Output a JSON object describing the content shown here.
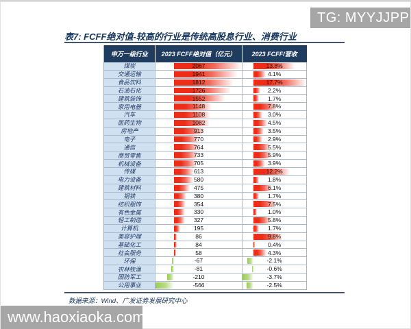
{
  "page": {
    "watermark_top_right": "TG: MYYJJPP",
    "watermark_bottom_left": "www.haoxiaoka.com"
  },
  "report": {
    "title": "表7:  FCFF绝对值-较高的行业是传统高股息行业、消费行业",
    "source_note": "数据来源：Wind、广发证券发展研究中心"
  },
  "table": {
    "headers": [
      "申万一级行业",
      "2023 FCFF绝对值（亿元）",
      "2023 FCFF/营收"
    ],
    "rows": [
      {
        "industry": "煤炭",
        "fcff": 2067,
        "ratio_pct": 13.8
      },
      {
        "industry": "交通运输",
        "fcff": 1941,
        "ratio_pct": 4.1
      },
      {
        "industry": "食品饮料",
        "fcff": 1812,
        "ratio_pct": 17.7
      },
      {
        "industry": "石油石化",
        "fcff": 1726,
        "ratio_pct": 2.2
      },
      {
        "industry": "建筑装饰",
        "fcff": 1552,
        "ratio_pct": 1.7
      },
      {
        "industry": "家用电器",
        "fcff": 1148,
        "ratio_pct": 7.8
      },
      {
        "industry": "汽车",
        "fcff": 1108,
        "ratio_pct": 3.0
      },
      {
        "industry": "医药生物",
        "fcff": 1082,
        "ratio_pct": 4.5
      },
      {
        "industry": "房地产",
        "fcff": 913,
        "ratio_pct": 3.5
      },
      {
        "industry": "电子",
        "fcff": 770,
        "ratio_pct": 2.9
      },
      {
        "industry": "通信",
        "fcff": 764,
        "ratio_pct": 5.5
      },
      {
        "industry": "商贸零售",
        "fcff": 733,
        "ratio_pct": 5.9
      },
      {
        "industry": "机械设备",
        "fcff": 705,
        "ratio_pct": 3.9
      },
      {
        "industry": "传媒",
        "fcff": 613,
        "ratio_pct": 12.2
      },
      {
        "industry": "电力设备",
        "fcff": 580,
        "ratio_pct": 1.8
      },
      {
        "industry": "建筑材料",
        "fcff": 475,
        "ratio_pct": 6.1
      },
      {
        "industry": "钢铁",
        "fcff": 380,
        "ratio_pct": 1.7
      },
      {
        "industry": "纺织服饰",
        "fcff": 354,
        "ratio_pct": 7.5
      },
      {
        "industry": "有色金属",
        "fcff": 330,
        "ratio_pct": 1.0
      },
      {
        "industry": "轻工制造",
        "fcff": 327,
        "ratio_pct": 5.8
      },
      {
        "industry": "计算机",
        "fcff": 195,
        "ratio_pct": 1.7
      },
      {
        "industry": "美容护理",
        "fcff": 86,
        "ratio_pct": 9.8
      },
      {
        "industry": "基础化工",
        "fcff": 84,
        "ratio_pct": 0.4
      },
      {
        "industry": "社会服务",
        "fcff": 58,
        "ratio_pct": 4.3
      },
      {
        "industry": "环保",
        "fcff": -67,
        "ratio_pct": -2.1
      },
      {
        "industry": "农林牧渔",
        "fcff": -81,
        "ratio_pct": -0.6
      },
      {
        "industry": "国防军工",
        "fcff": -210,
        "ratio_pct": -3.7
      },
      {
        "industry": "公用事业",
        "fcff": -566,
        "ratio_pct": -2.5
      }
    ]
  },
  "colors": {
    "header_bg": "#1f3c5f",
    "industry_cell_bg": "#cfe0f1",
    "navy_text": "#15365c",
    "positive_bar": "#ed2d17",
    "negative_bar": "#8dc63f",
    "watermark_bg": "#a6a6a6"
  },
  "chart_data": {
    "type": "table",
    "title": "表7: FCFF绝对值-较高的行业是传统高股息行业、消费行业",
    "columns": [
      "申万一级行业",
      "2023 FCFF绝对值（亿元）",
      "2023 FCFF/营收"
    ],
    "categories": [
      "煤炭",
      "交通运输",
      "食品饮料",
      "石油石化",
      "建筑装饰",
      "家用电器",
      "汽车",
      "医药生物",
      "房地产",
      "电子",
      "通信",
      "商贸零售",
      "机械设备",
      "传媒",
      "电力设备",
      "建筑材料",
      "钢铁",
      "纺织服饰",
      "有色金属",
      "轻工制造",
      "计算机",
      "美容护理",
      "基础化工",
      "社会服务",
      "环保",
      "农林牧渔",
      "国防军工",
      "公用事业"
    ],
    "series": [
      {
        "name": "2023 FCFF绝对值（亿元）",
        "values": [
          2067,
          1941,
          1812,
          1726,
          1552,
          1148,
          1108,
          1082,
          913,
          770,
          764,
          733,
          705,
          613,
          580,
          475,
          380,
          354,
          330,
          327,
          195,
          86,
          84,
          58,
          -67,
          -81,
          -210,
          -566
        ]
      },
      {
        "name": "2023 FCFF/营收（%）",
        "values": [
          13.8,
          4.1,
          17.7,
          2.2,
          1.7,
          7.8,
          3.0,
          4.5,
          3.5,
          2.9,
          5.5,
          5.9,
          3.9,
          12.2,
          1.8,
          6.1,
          1.7,
          7.5,
          1.0,
          5.8,
          1.7,
          9.8,
          0.4,
          4.3,
          -2.1,
          -0.6,
          -3.7,
          -2.5
        ]
      }
    ],
    "layout_hints": {
      "bar_style": "excel-gradient-data-bars",
      "positive_color": "red",
      "negative_color": "green",
      "value_range": [
        -566,
        2067
      ],
      "ratio_range_pct": [
        -3.7,
        17.7
      ]
    }
  }
}
